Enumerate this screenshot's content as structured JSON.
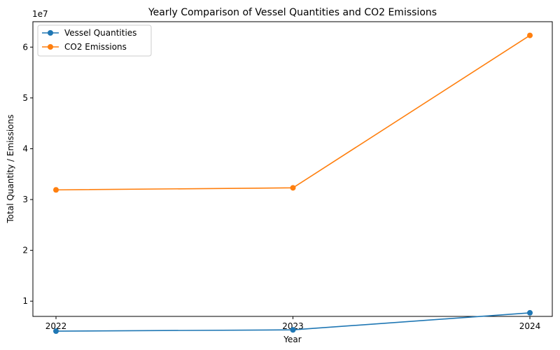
{
  "chart_data": {
    "type": "line",
    "title": "Yearly Comparison of Vessel Quantities and CO2 Emissions",
    "xlabel": "Year",
    "ylabel": "Total Quantity / Emissions",
    "y_offset_label": "1e7",
    "categories": [
      "2022",
      "2023",
      "2024"
    ],
    "y_ticks": [
      1,
      2,
      3,
      4,
      5,
      6
    ],
    "y_scale": 10000000,
    "ylim": [
      10000000,
      65000000
    ],
    "ylim_display": [
      1.0,
      6.5
    ],
    "grid": false,
    "legend_position": "upper-left",
    "series": [
      {
        "name": "Vessel Quantities",
        "color": "#1f77b4",
        "values": [
          4100000,
          4350000,
          7700000
        ]
      },
      {
        "name": "CO2 Emissions",
        "color": "#ff7f0e",
        "values": [
          31900000,
          32300000,
          62300000
        ]
      }
    ]
  }
}
